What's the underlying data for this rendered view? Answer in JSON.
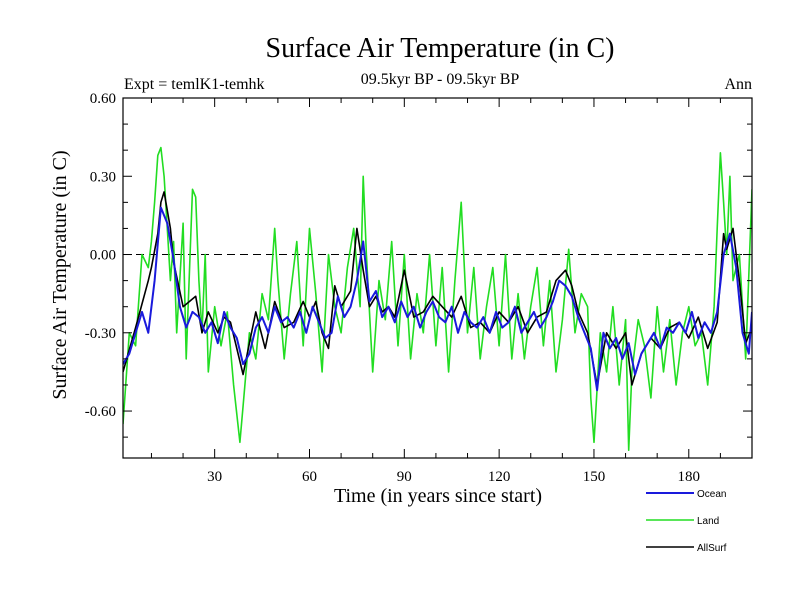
{
  "chart_data": {
    "type": "line",
    "title": "Surface Air Temperature (in C)",
    "subtitle_left": "Expt = temlK1-temhk",
    "subtitle_center": "09.5kyr BP - 09.5kyr BP",
    "subtitle_right": "Ann",
    "xlabel": "Time (in years since start)",
    "ylabel": "Surface Air Temperature (in C)",
    "xlim": [
      1,
      200
    ],
    "ylim": [
      -0.78,
      0.6
    ],
    "x_ticks": [
      30,
      60,
      90,
      120,
      150,
      180
    ],
    "x_tick_labels": [
      "30",
      "60",
      "90",
      "120",
      "150",
      "180"
    ],
    "y_ticks": [
      0.6,
      0.3,
      0.0,
      -0.3,
      -0.6
    ],
    "y_tick_labels": [
      "0.60",
      "0.30",
      "0.00",
      "-0.30",
      "-0.60"
    ],
    "reference_line": {
      "y": 0,
      "style": "dashed"
    },
    "legend_position": "bottom-right",
    "colors": {
      "ocean": "#1a1adc",
      "land": "#22dd22",
      "allsurf": "#000000"
    },
    "series": [
      {
        "name": "AllSurf",
        "color": "#000000",
        "x": [
          1,
          5,
          9,
          10,
          12,
          13,
          14,
          16,
          17,
          20,
          24,
          26,
          28,
          31,
          33,
          35,
          39,
          41,
          43,
          46,
          49,
          52,
          55,
          58,
          60,
          62,
          64,
          66,
          68,
          70,
          73,
          75,
          77,
          79,
          81,
          83,
          85,
          87,
          90,
          93,
          96,
          99,
          102,
          105,
          108,
          111,
          114,
          117,
          120,
          123,
          126,
          129,
          132,
          135,
          138,
          141,
          143,
          145,
          148,
          151,
          154,
          157,
          160,
          162,
          165,
          168,
          171,
          174,
          177,
          180,
          183,
          186,
          189,
          191,
          192,
          194,
          196,
          198,
          200
        ],
        "values": [
          -0.45,
          -0.28,
          -0.1,
          -0.05,
          0.08,
          0.2,
          0.24,
          0.1,
          -0.03,
          -0.2,
          -0.16,
          -0.3,
          -0.22,
          -0.3,
          -0.24,
          -0.26,
          -0.46,
          -0.34,
          -0.22,
          -0.36,
          -0.18,
          -0.28,
          -0.26,
          -0.18,
          -0.24,
          -0.18,
          -0.3,
          -0.36,
          -0.12,
          -0.2,
          -0.14,
          0.1,
          -0.06,
          -0.2,
          -0.16,
          -0.22,
          -0.2,
          -0.24,
          -0.06,
          -0.24,
          -0.22,
          -0.16,
          -0.2,
          -0.24,
          -0.16,
          -0.28,
          -0.26,
          -0.3,
          -0.22,
          -0.26,
          -0.2,
          -0.3,
          -0.24,
          -0.22,
          -0.1,
          -0.06,
          -0.12,
          -0.22,
          -0.3,
          -0.5,
          -0.3,
          -0.36,
          -0.3,
          -0.5,
          -0.38,
          -0.32,
          -0.36,
          -0.28,
          -0.26,
          -0.32,
          -0.24,
          -0.36,
          -0.26,
          0.08,
          0.02,
          0.1,
          -0.1,
          -0.34,
          -0.28
        ]
      },
      {
        "name": "Land",
        "color": "#22dd22",
        "x": [
          1,
          3,
          5,
          7,
          9,
          10,
          11,
          12,
          13,
          14,
          15,
          16,
          17,
          18,
          20,
          21,
          23,
          24,
          25,
          26,
          27,
          28,
          30,
          32,
          34,
          36,
          38,
          39,
          41,
          43,
          45,
          47,
          49,
          50,
          52,
          54,
          56,
          58,
          60,
          62,
          64,
          66,
          68,
          70,
          72,
          74,
          76,
          77,
          78,
          80,
          82,
          84,
          86,
          88,
          90,
          92,
          94,
          96,
          98,
          100,
          102,
          104,
          106,
          108,
          110,
          112,
          114,
          116,
          118,
          120,
          122,
          124,
          126,
          128,
          130,
          132,
          134,
          136,
          138,
          140,
          142,
          144,
          146,
          148,
          149,
          150,
          152,
          154,
          156,
          158,
          160,
          161,
          162,
          164,
          166,
          168,
          170,
          172,
          174,
          176,
          178,
          180,
          182,
          184,
          186,
          188,
          189,
          190,
          191,
          192,
          193,
          194,
          196,
          198,
          200
        ],
        "values": [
          -0.65,
          -0.3,
          -0.35,
          0.0,
          -0.05,
          0.05,
          0.2,
          0.38,
          0.41,
          0.3,
          0.1,
          -0.1,
          0.05,
          -0.3,
          0.12,
          -0.4,
          0.25,
          0.22,
          -0.1,
          -0.3,
          0.0,
          -0.45,
          -0.2,
          -0.35,
          -0.22,
          -0.5,
          -0.72,
          -0.58,
          -0.3,
          -0.4,
          -0.15,
          -0.25,
          0.1,
          -0.1,
          -0.4,
          -0.15,
          0.05,
          -0.35,
          0.1,
          -0.15,
          -0.45,
          0.0,
          -0.2,
          -0.3,
          -0.05,
          0.1,
          -0.2,
          0.3,
          0.0,
          -0.45,
          -0.1,
          -0.25,
          0.05,
          -0.35,
          0.0,
          -0.4,
          -0.15,
          -0.3,
          0.0,
          -0.35,
          -0.05,
          -0.45,
          -0.1,
          0.2,
          -0.3,
          -0.05,
          -0.4,
          -0.2,
          -0.05,
          -0.35,
          0.0,
          -0.4,
          -0.15,
          -0.4,
          -0.2,
          -0.05,
          -0.35,
          -0.1,
          -0.45,
          -0.25,
          0.02,
          -0.3,
          -0.15,
          -0.2,
          -0.55,
          -0.72,
          -0.3,
          -0.45,
          -0.2,
          -0.5,
          -0.25,
          -0.75,
          -0.45,
          -0.25,
          -0.35,
          -0.55,
          -0.2,
          -0.45,
          -0.25,
          -0.5,
          -0.3,
          -0.2,
          -0.35,
          -0.3,
          -0.5,
          -0.2,
          0.1,
          0.39,
          0.2,
          0.0,
          0.3,
          -0.1,
          0.0,
          -0.4,
          0.25
        ]
      },
      {
        "name": "Ocean",
        "color": "#1a1adc",
        "x": [
          1,
          3,
          5,
          7,
          9,
          11,
          13,
          15,
          17,
          19,
          21,
          23,
          25,
          27,
          29,
          31,
          33,
          35,
          37,
          39,
          41,
          43,
          45,
          47,
          49,
          51,
          53,
          55,
          57,
          59,
          61,
          63,
          65,
          67,
          69,
          71,
          73,
          75,
          77,
          79,
          81,
          83,
          85,
          87,
          89,
          91,
          93,
          95,
          97,
          99,
          101,
          103,
          105,
          107,
          109,
          111,
          113,
          115,
          117,
          119,
          121,
          123,
          125,
          127,
          129,
          131,
          133,
          135,
          137,
          139,
          141,
          143,
          145,
          147,
          149,
          151,
          153,
          155,
          157,
          159,
          161,
          163,
          165,
          167,
          169,
          171,
          173,
          175,
          177,
          179,
          181,
          183,
          185,
          187,
          189,
          191,
          193,
          195,
          197,
          199,
          200
        ],
        "values": [
          -0.42,
          -0.38,
          -0.3,
          -0.22,
          -0.3,
          -0.1,
          0.18,
          0.12,
          -0.02,
          -0.2,
          -0.28,
          -0.22,
          -0.24,
          -0.3,
          -0.26,
          -0.34,
          -0.22,
          -0.28,
          -0.32,
          -0.42,
          -0.38,
          -0.28,
          -0.24,
          -0.3,
          -0.2,
          -0.26,
          -0.24,
          -0.28,
          -0.22,
          -0.3,
          -0.2,
          -0.26,
          -0.32,
          -0.3,
          -0.16,
          -0.24,
          -0.2,
          -0.1,
          0.05,
          -0.18,
          -0.14,
          -0.24,
          -0.2,
          -0.26,
          -0.18,
          -0.24,
          -0.2,
          -0.28,
          -0.22,
          -0.18,
          -0.24,
          -0.26,
          -0.2,
          -0.3,
          -0.22,
          -0.26,
          -0.28,
          -0.24,
          -0.3,
          -0.22,
          -0.28,
          -0.26,
          -0.2,
          -0.3,
          -0.26,
          -0.22,
          -0.28,
          -0.24,
          -0.18,
          -0.1,
          -0.12,
          -0.16,
          -0.24,
          -0.3,
          -0.36,
          -0.52,
          -0.3,
          -0.36,
          -0.32,
          -0.4,
          -0.34,
          -0.46,
          -0.38,
          -0.34,
          -0.3,
          -0.36,
          -0.28,
          -0.3,
          -0.26,
          -0.3,
          -0.22,
          -0.32,
          -0.26,
          -0.3,
          -0.22,
          0.0,
          0.08,
          -0.05,
          -0.3,
          -0.38,
          -0.22
        ]
      }
    ]
  }
}
